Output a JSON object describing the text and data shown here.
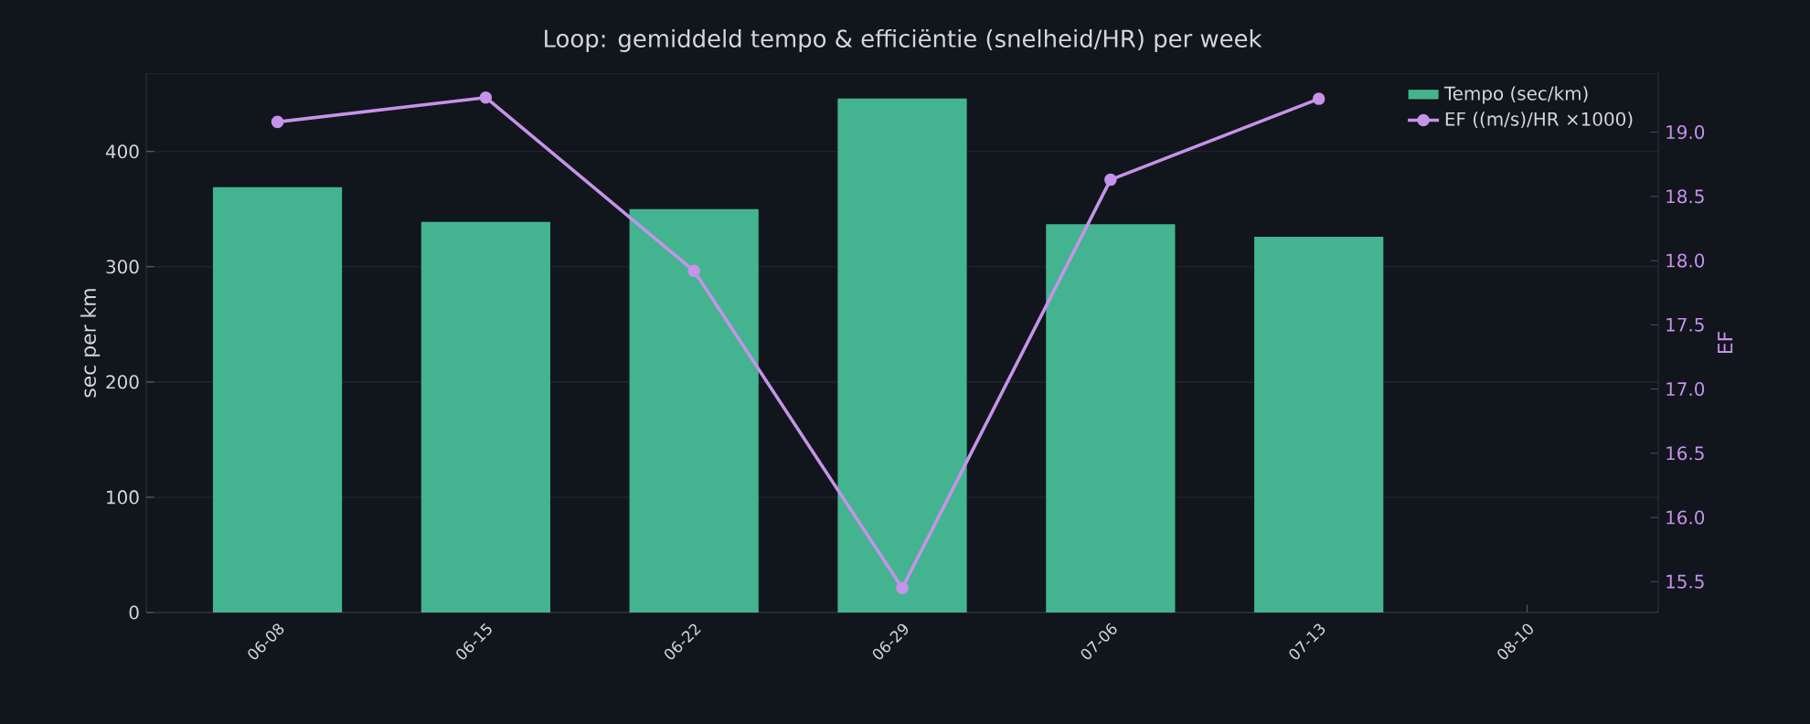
{
  "chart_data": {
    "type": "bar",
    "title": "Loop: gemiddeld tempo & efficiëntie (snelheid/HR) per week",
    "categories": [
      "06-08",
      "06-15",
      "06-22",
      "06-29",
      "07-06",
      "07-13",
      "08-10"
    ],
    "series": [
      {
        "name": "Tempo (sec/km)",
        "color": "#43b48f",
        "values": [
          369,
          339,
          350,
          446,
          337,
          326,
          null
        ]
      },
      {
        "name": "EF ((m/s)/HR ×1000)",
        "type": "line",
        "axis": "y2",
        "color": "#c792ea",
        "values": [
          19.08,
          19.27,
          17.92,
          15.45,
          18.63,
          19.26,
          null
        ]
      }
    ],
    "ylabel": "sec per km",
    "y2label": "EF",
    "ylim": [
      0,
      468
    ],
    "yticks": [
      0,
      100,
      200,
      300,
      400
    ],
    "y2lim": [
      15.26,
      19.46
    ],
    "y2ticks": [
      {
        "value": 15.5,
        "label": "15.5"
      },
      {
        "value": 16,
        "label": "16.0"
      },
      {
        "value": 16.5,
        "label": "16.5"
      },
      {
        "value": 17,
        "label": "17.0"
      },
      {
        "value": 17.5,
        "label": "17.5"
      },
      {
        "value": 18,
        "label": "18.0"
      },
      {
        "value": 18.5,
        "label": "18.5"
      },
      {
        "value": 19,
        "label": "19.0"
      }
    ],
    "grid": "y",
    "legend": "top right",
    "marker": "circle",
    "line_style": "solid"
  }
}
